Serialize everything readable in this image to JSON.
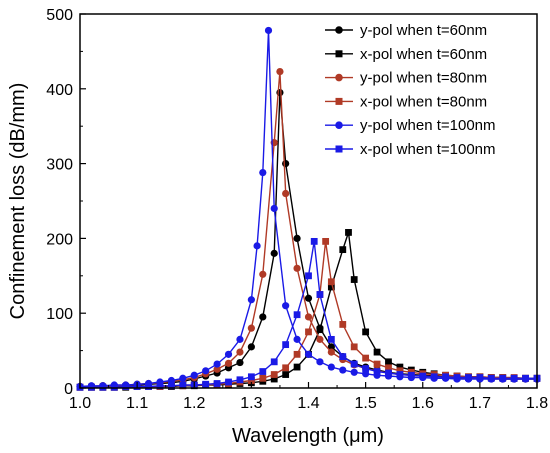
{
  "chart_data": {
    "type": "line",
    "title": "",
    "xlabel": "Wavelength (μm)",
    "ylabel": "Confinement loss (dB/mm)",
    "xlim": [
      1.0,
      1.8
    ],
    "ylim": [
      0,
      500
    ],
    "xticks": [
      "1.0",
      "1.1",
      "1.2",
      "1.3",
      "1.4",
      "1.5",
      "1.6",
      "1.7",
      "1.8"
    ],
    "yticks": [
      "0",
      "100",
      "200",
      "300",
      "400",
      "500"
    ],
    "grid": false,
    "legend_position": "top-right",
    "series": [
      {
        "name": "y-pol when t=60nm",
        "color": "#000000",
        "marker": "circle",
        "x": [
          1.0,
          1.02,
          1.04,
          1.06,
          1.08,
          1.1,
          1.12,
          1.14,
          1.16,
          1.18,
          1.2,
          1.22,
          1.24,
          1.26,
          1.28,
          1.3,
          1.32,
          1.34,
          1.35,
          1.36,
          1.38,
          1.4,
          1.42,
          1.44,
          1.46,
          1.48,
          1.5,
          1.52,
          1.54,
          1.56,
          1.58,
          1.6,
          1.62,
          1.64,
          1.66,
          1.68,
          1.7,
          1.72,
          1.74,
          1.76,
          1.78,
          1.8
        ],
        "y": [
          2,
          2,
          3,
          3,
          3,
          4,
          5,
          6,
          7,
          9,
          12,
          16,
          20,
          27,
          34,
          55,
          95,
          180,
          395,
          300,
          200,
          120,
          80,
          55,
          42,
          33,
          28,
          24,
          21,
          19,
          18,
          17,
          16,
          15,
          14,
          14,
          13,
          13,
          12,
          12,
          12,
          12
        ]
      },
      {
        "name": "x-pol when t=60nm",
        "color": "#000000",
        "marker": "square",
        "x": [
          1.0,
          1.02,
          1.04,
          1.06,
          1.08,
          1.1,
          1.12,
          1.14,
          1.16,
          1.18,
          1.2,
          1.22,
          1.24,
          1.26,
          1.28,
          1.3,
          1.32,
          1.34,
          1.36,
          1.38,
          1.4,
          1.42,
          1.44,
          1.46,
          1.47,
          1.48,
          1.5,
          1.52,
          1.54,
          1.56,
          1.58,
          1.6,
          1.62,
          1.64,
          1.66,
          1.68,
          1.7,
          1.72,
          1.74,
          1.76,
          1.78,
          1.8
        ],
        "y": [
          1,
          1,
          1,
          1,
          1,
          2,
          2,
          2,
          2,
          3,
          3,
          4,
          4,
          5,
          6,
          7,
          9,
          12,
          18,
          28,
          45,
          78,
          135,
          185,
          208,
          145,
          75,
          48,
          35,
          28,
          24,
          21,
          19,
          17,
          16,
          15,
          15,
          14,
          14,
          13,
          13,
          13
        ]
      },
      {
        "name": "y-pol when t=80nm",
        "color": "#b03a26",
        "marker": "circle",
        "x": [
          1.0,
          1.02,
          1.04,
          1.06,
          1.08,
          1.1,
          1.12,
          1.14,
          1.16,
          1.18,
          1.2,
          1.22,
          1.24,
          1.26,
          1.28,
          1.3,
          1.32,
          1.34,
          1.35,
          1.36,
          1.38,
          1.4,
          1.42,
          1.44,
          1.46,
          1.48,
          1.5,
          1.52,
          1.54,
          1.56,
          1.58,
          1.6,
          1.62,
          1.64,
          1.66,
          1.68,
          1.7,
          1.72,
          1.74,
          1.76,
          1.78,
          1.8
        ],
        "y": [
          2,
          2,
          3,
          3,
          4,
          5,
          6,
          7,
          9,
          11,
          14,
          19,
          25,
          33,
          48,
          80,
          152,
          328,
          423,
          260,
          160,
          95,
          65,
          48,
          38,
          31,
          26,
          23,
          20,
          18,
          17,
          16,
          15,
          14,
          14,
          13,
          13,
          12,
          12,
          12,
          12,
          12
        ]
      },
      {
        "name": "x-pol when t=80nm",
        "color": "#b03a26",
        "marker": "square",
        "x": [
          1.0,
          1.02,
          1.04,
          1.06,
          1.08,
          1.1,
          1.12,
          1.14,
          1.16,
          1.18,
          1.2,
          1.22,
          1.24,
          1.26,
          1.28,
          1.3,
          1.32,
          1.34,
          1.36,
          1.38,
          1.4,
          1.42,
          1.43,
          1.44,
          1.46,
          1.48,
          1.5,
          1.52,
          1.54,
          1.56,
          1.58,
          1.6,
          1.62,
          1.64,
          1.66,
          1.68,
          1.7,
          1.72,
          1.74,
          1.76,
          1.78,
          1.8
        ],
        "y": [
          1,
          1,
          1,
          1,
          2,
          2,
          2,
          2,
          3,
          3,
          4,
          4,
          5,
          6,
          8,
          10,
          13,
          18,
          27,
          45,
          75,
          125,
          196,
          142,
          85,
          55,
          40,
          32,
          27,
          23,
          21,
          19,
          18,
          17,
          16,
          15,
          15,
          14,
          14,
          14,
          13,
          13
        ]
      },
      {
        "name": "y-pol when t=100nm",
        "color": "#1a1ae6",
        "marker": "circle",
        "x": [
          1.0,
          1.02,
          1.04,
          1.06,
          1.08,
          1.1,
          1.12,
          1.14,
          1.16,
          1.18,
          1.2,
          1.22,
          1.24,
          1.26,
          1.28,
          1.3,
          1.31,
          1.32,
          1.33,
          1.34,
          1.36,
          1.38,
          1.4,
          1.42,
          1.44,
          1.46,
          1.48,
          1.5,
          1.52,
          1.54,
          1.56,
          1.58,
          1.6,
          1.62,
          1.64,
          1.66,
          1.68,
          1.7,
          1.72,
          1.74,
          1.76,
          1.78,
          1.8
        ],
        "y": [
          2,
          3,
          3,
          4,
          4,
          5,
          6,
          8,
          10,
          13,
          17,
          23,
          32,
          45,
          65,
          118,
          190,
          288,
          478,
          240,
          110,
          65,
          45,
          35,
          28,
          24,
          21,
          19,
          17,
          16,
          15,
          14,
          14,
          13,
          13,
          12,
          12,
          12,
          12,
          12,
          12,
          12,
          12
        ]
      },
      {
        "name": "x-pol when t=100nm",
        "color": "#1a1ae6",
        "marker": "square",
        "x": [
          1.0,
          1.02,
          1.04,
          1.06,
          1.08,
          1.1,
          1.12,
          1.14,
          1.16,
          1.18,
          1.2,
          1.22,
          1.24,
          1.26,
          1.28,
          1.3,
          1.32,
          1.34,
          1.36,
          1.38,
          1.4,
          1.41,
          1.42,
          1.44,
          1.46,
          1.48,
          1.5,
          1.52,
          1.54,
          1.56,
          1.58,
          1.6,
          1.62,
          1.64,
          1.66,
          1.68,
          1.7,
          1.72,
          1.74,
          1.76,
          1.78,
          1.8
        ],
        "y": [
          1,
          1,
          1,
          1,
          2,
          2,
          2,
          3,
          3,
          4,
          4,
          5,
          6,
          8,
          11,
          15,
          22,
          35,
          58,
          98,
          150,
          196,
          125,
          65,
          42,
          32,
          26,
          22,
          20,
          18,
          17,
          16,
          15,
          15,
          14,
          14,
          14,
          13,
          13,
          13,
          13,
          13
        ]
      }
    ]
  }
}
